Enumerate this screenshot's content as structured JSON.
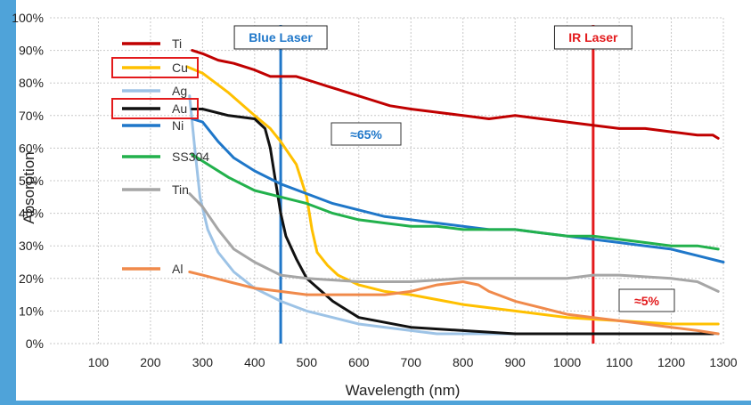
{
  "chart_data": {
    "type": "line",
    "title": "",
    "xlabel": "Wavelength (nm)",
    "ylabel": "Absorption",
    "xlim": [
      0,
      1300
    ],
    "ylim": [
      0,
      100
    ],
    "x_ticks": [
      100,
      200,
      300,
      400,
      500,
      600,
      700,
      800,
      900,
      1000,
      1100,
      1200,
      1300
    ],
    "y_ticks": [
      "0%",
      "10%",
      "20%",
      "30%",
      "40%",
      "50%",
      "60%",
      "70%",
      "80%",
      "90%",
      "100%"
    ],
    "grid": true,
    "legend_position": "left",
    "series": [
      {
        "name": "Ti",
        "color": "#c00000",
        "x": [
          280,
          300,
          330,
          360,
          400,
          430,
          450,
          480,
          500,
          540,
          580,
          620,
          660,
          700,
          750,
          800,
          850,
          900,
          950,
          1000,
          1050,
          1100,
          1150,
          1200,
          1250,
          1280,
          1290
        ],
        "y": [
          90,
          89,
          87,
          86,
          84,
          82,
          82,
          82,
          81,
          79,
          77,
          75,
          73,
          72,
          71,
          70,
          69,
          70,
          69,
          68,
          67,
          66,
          66,
          65,
          64,
          64,
          63
        ]
      },
      {
        "name": "Cu",
        "color": "#ffc000",
        "x": [
          270,
          300,
          350,
          400,
          430,
          450,
          480,
          500,
          510,
          520,
          540,
          560,
          600,
          650,
          700,
          800,
          900,
          1000,
          1100,
          1200,
          1290
        ],
        "y": [
          85,
          83,
          77,
          70,
          66,
          62,
          55,
          45,
          35,
          28,
          24,
          21,
          18,
          16,
          15,
          12,
          10,
          8,
          7,
          6,
          6
        ]
      },
      {
        "name": "Ag",
        "color": "#9dc3e6",
        "x": [
          275,
          285,
          295,
          310,
          330,
          360,
          400,
          450,
          500,
          550,
          600,
          700,
          750,
          800,
          900,
          1000,
          1100,
          1200,
          1290
        ],
        "y": [
          76,
          60,
          45,
          35,
          28,
          22,
          17,
          13,
          10,
          8,
          6,
          4,
          3,
          3,
          3,
          3,
          3,
          3,
          3
        ]
      },
      {
        "name": "Au",
        "color": "#111111",
        "x": [
          280,
          300,
          350,
          400,
          420,
          430,
          440,
          450,
          460,
          480,
          500,
          550,
          600,
          700,
          800,
          900,
          1000,
          1100,
          1200,
          1280
        ],
        "y": [
          72,
          72,
          70,
          69,
          66,
          60,
          50,
          40,
          33,
          26,
          20,
          13,
          8,
          5,
          4,
          3,
          3,
          3,
          3,
          3
        ]
      },
      {
        "name": "Ni",
        "color": "#1f77c9",
        "x": [
          280,
          300,
          330,
          360,
          400,
          450,
          500,
          550,
          600,
          650,
          700,
          750,
          800,
          850,
          900,
          950,
          1000,
          1050,
          1100,
          1150,
          1200,
          1250,
          1300
        ],
        "y": [
          69,
          68,
          62,
          57,
          53,
          49,
          46,
          43,
          41,
          39,
          38,
          37,
          36,
          35,
          35,
          34,
          33,
          32,
          31,
          30,
          29,
          27,
          25
        ]
      },
      {
        "name": "SS304",
        "color": "#22b14c",
        "x": [
          280,
          300,
          350,
          400,
          450,
          500,
          550,
          600,
          650,
          700,
          750,
          800,
          850,
          900,
          950,
          1000,
          1050,
          1100,
          1150,
          1200,
          1250,
          1290
        ],
        "y": [
          58,
          56,
          51,
          47,
          45,
          43,
          40,
          38,
          37,
          36,
          36,
          35,
          35,
          35,
          34,
          33,
          33,
          32,
          31,
          30,
          30,
          29
        ]
      },
      {
        "name": "Tin",
        "color": "#a6a6a6",
        "x": [
          275,
          300,
          330,
          360,
          400,
          450,
          500,
          600,
          700,
          800,
          900,
          1000,
          1050,
          1100,
          1200,
          1250,
          1290
        ],
        "y": [
          46,
          42,
          35,
          29,
          25,
          21,
          20,
          19,
          19,
          20,
          20,
          20,
          21,
          21,
          20,
          19,
          16
        ]
      },
      {
        "name": "Al",
        "color": "#f08a4b",
        "x": [
          275,
          300,
          350,
          400,
          450,
          500,
          550,
          600,
          650,
          700,
          750,
          800,
          830,
          850,
          900,
          950,
          1000,
          1050,
          1100,
          1150,
          1200,
          1250,
          1290
        ],
        "y": [
          22,
          21,
          19,
          17,
          16,
          15,
          15,
          15,
          15,
          16,
          18,
          19,
          18,
          16,
          13,
          11,
          9,
          8,
          7,
          6,
          5,
          4,
          3
        ]
      }
    ],
    "highlighted_legend": [
      "Cu",
      "Au"
    ],
    "annotations": [
      {
        "label": "Blue Laser",
        "x": 450,
        "color": "#1f77c9"
      },
      {
        "label": "IR Laser",
        "x": 1050,
        "color": "#e31a1c"
      }
    ],
    "callouts": [
      {
        "label": "≈65%",
        "color": "#1f77c9"
      },
      {
        "label": "≈5%",
        "color": "#e31a1c"
      }
    ]
  }
}
